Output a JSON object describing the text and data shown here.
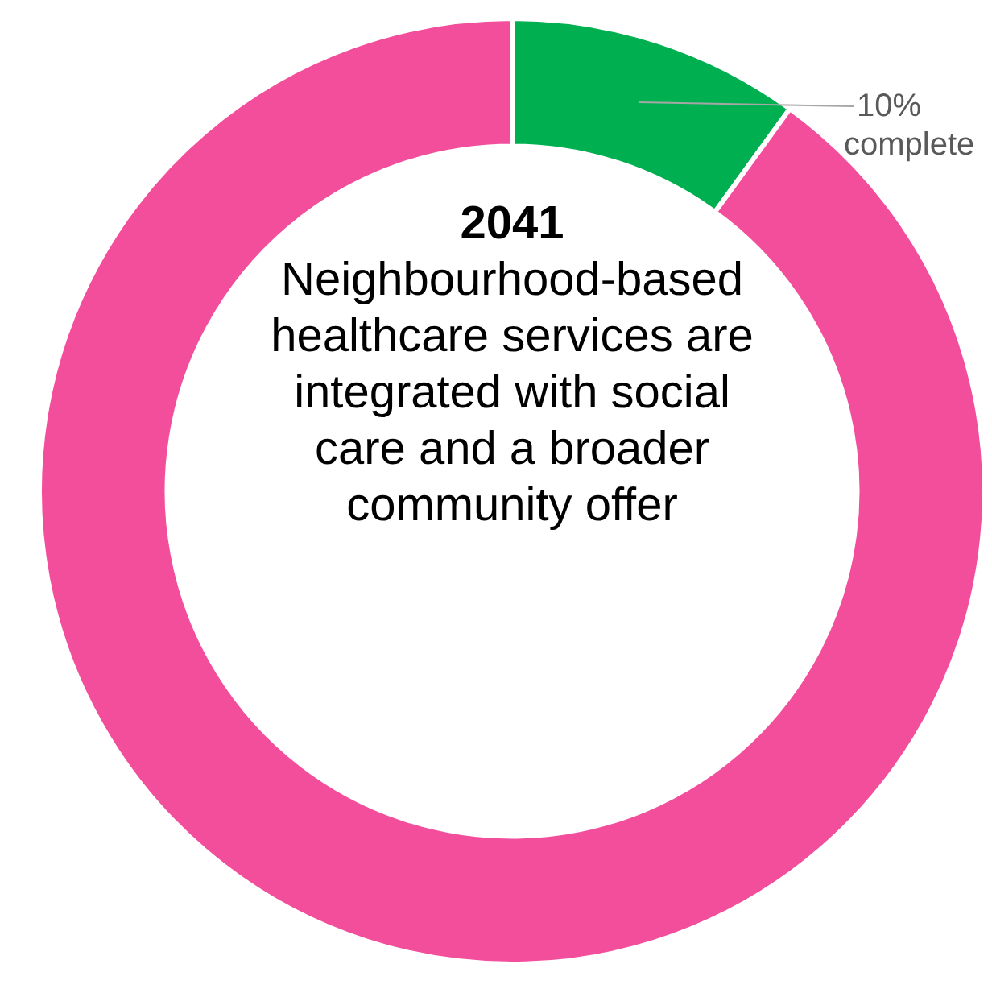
{
  "chart_data": {
    "type": "donut",
    "title": "2041",
    "subtitle": "Neighbourhood-based healthcare services are integrated with social care and a broader community offer",
    "categories": [
      "complete",
      null
    ],
    "values": [
      10,
      90
    ],
    "colors": [
      "#00b050",
      "#f24e9b"
    ],
    "value_labels": [
      "10%",
      null
    ],
    "legend": false
  }
}
